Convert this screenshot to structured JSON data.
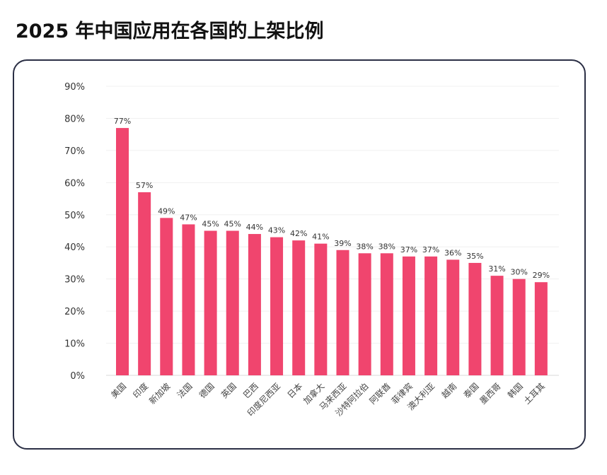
{
  "title": "2025 年中国应用在各国的上架比例",
  "chart_data": {
    "type": "bar",
    "title": "2025 年中国应用在各国的上架比例",
    "categories": [
      "美国",
      "印度",
      "新加坡",
      "法国",
      "德国",
      "英国",
      "巴西",
      "印度尼西亚",
      "日本",
      "加拿大",
      "马来西亚",
      "沙特阿拉伯",
      "阿联酋",
      "菲律宾",
      "澳大利亚",
      "越南",
      "泰国",
      "墨西哥",
      "韩国",
      "土耳其"
    ],
    "values": [
      77,
      57,
      49,
      47,
      45,
      45,
      44,
      43,
      42,
      41,
      39,
      38,
      38,
      37,
      37,
      36,
      35,
      31,
      30,
      29
    ],
    "data_labels": [
      "77%",
      "57%",
      "49%",
      "47%",
      "45%",
      "45%",
      "44%",
      "43%",
      "42%",
      "41%",
      "39%",
      "38%",
      "38%",
      "37%",
      "37%",
      "36%",
      "35%",
      "31%",
      "30%",
      "29%"
    ],
    "yticks": [
      "0%",
      "10%",
      "20%",
      "30%",
      "40%",
      "50%",
      "60%",
      "70%",
      "80%",
      "90%"
    ],
    "ylim": [
      0,
      90
    ],
    "xlabel": "",
    "ylabel": "",
    "grid": true,
    "bar_color": "#f0456e"
  }
}
